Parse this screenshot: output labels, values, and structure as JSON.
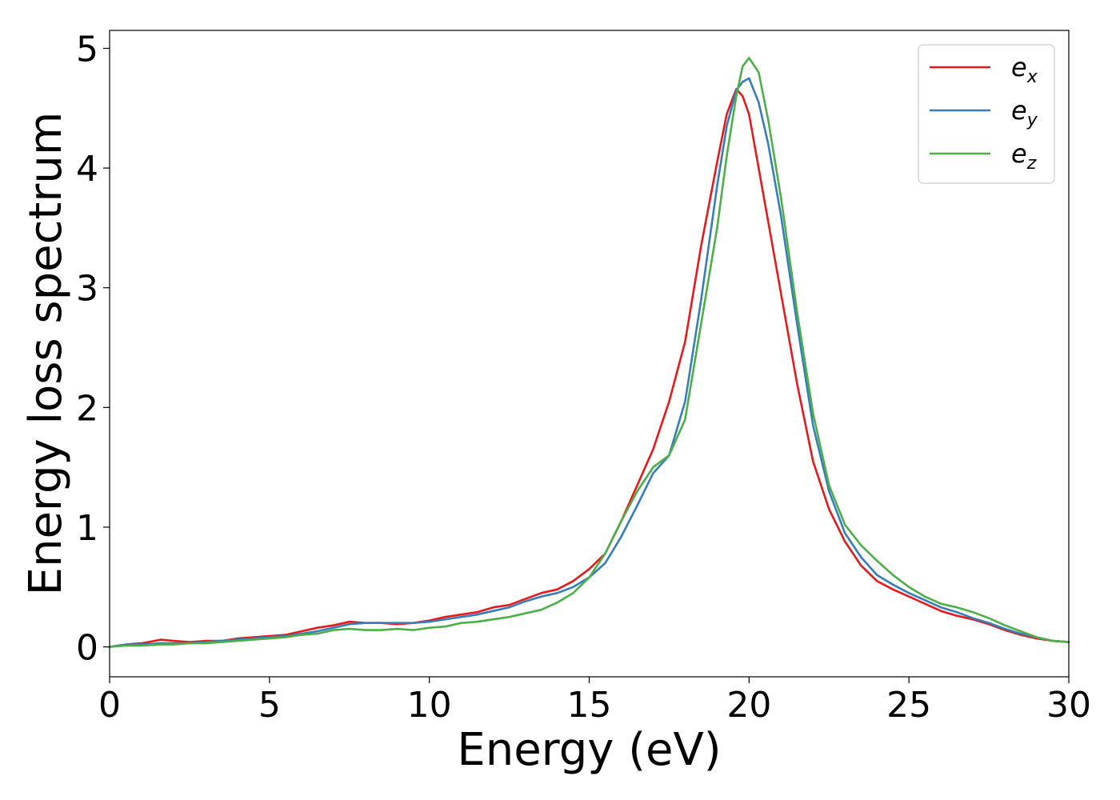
{
  "chart_data": {
    "type": "line",
    "title": "",
    "xlabel": "Energy (eV)",
    "ylabel": "Energy loss spectrum",
    "xlim": [
      0,
      30
    ],
    "ylim": [
      -0.25,
      5.15
    ],
    "xticks": [
      0,
      5,
      10,
      15,
      20,
      25,
      30
    ],
    "yticks": [
      0,
      1,
      2,
      3,
      4,
      5
    ],
    "grid": false,
    "legend_position": "top-right",
    "series": [
      {
        "name": "e",
        "subscript": "x",
        "color": "#e41a1c",
        "x": [
          0,
          0.5,
          1,
          1.6,
          2,
          2.5,
          3,
          3.5,
          4,
          4.5,
          5,
          5.5,
          6,
          6.5,
          7,
          7.5,
          8,
          8.5,
          9,
          9.5,
          10,
          10.5,
          11,
          11.5,
          12,
          12.5,
          13,
          13.5,
          14,
          14.5,
          15,
          15.5,
          16,
          16.5,
          17,
          17.5,
          18,
          18.5,
          19,
          19.3,
          19.6,
          19.8,
          20,
          20.3,
          20.6,
          21,
          21.5,
          22,
          22.5,
          23,
          23.5,
          24,
          24.5,
          25,
          25.5,
          26,
          26.5,
          27,
          27.5,
          28,
          28.5,
          29,
          29.5,
          30
        ],
        "values": [
          0.0,
          0.02,
          0.03,
          0.06,
          0.05,
          0.04,
          0.05,
          0.05,
          0.07,
          0.08,
          0.09,
          0.1,
          0.13,
          0.16,
          0.18,
          0.21,
          0.2,
          0.2,
          0.19,
          0.2,
          0.22,
          0.25,
          0.27,
          0.29,
          0.33,
          0.35,
          0.4,
          0.45,
          0.48,
          0.55,
          0.65,
          0.78,
          1.05,
          1.35,
          1.65,
          2.05,
          2.55,
          3.35,
          4.05,
          4.45,
          4.66,
          4.6,
          4.45,
          4.0,
          3.55,
          2.95,
          2.2,
          1.55,
          1.15,
          0.88,
          0.68,
          0.55,
          0.48,
          0.42,
          0.36,
          0.3,
          0.26,
          0.23,
          0.19,
          0.14,
          0.1,
          0.07,
          0.05,
          0.04
        ]
      },
      {
        "name": "e",
        "subscript": "y",
        "color": "#377eb8",
        "x": [
          0,
          0.5,
          1,
          1.6,
          2,
          2.5,
          3,
          3.5,
          4,
          4.5,
          5,
          5.5,
          6,
          6.5,
          7,
          7.5,
          8,
          8.5,
          9,
          9.5,
          10,
          10.5,
          11,
          11.5,
          12,
          12.5,
          13,
          13.5,
          14,
          14.5,
          15,
          15.5,
          16,
          16.5,
          17,
          17.5,
          18,
          18.5,
          19,
          19.3,
          19.6,
          19.8,
          20,
          20.3,
          20.6,
          21,
          21.5,
          22,
          22.5,
          23,
          23.5,
          24,
          24.5,
          25,
          25.5,
          26,
          26.5,
          27,
          27.5,
          28,
          28.5,
          29,
          29.5,
          30
        ],
        "values": [
          0.0,
          0.02,
          0.02,
          0.03,
          0.03,
          0.03,
          0.04,
          0.05,
          0.06,
          0.07,
          0.08,
          0.09,
          0.11,
          0.13,
          0.16,
          0.19,
          0.2,
          0.2,
          0.2,
          0.2,
          0.21,
          0.23,
          0.25,
          0.27,
          0.3,
          0.33,
          0.38,
          0.42,
          0.45,
          0.5,
          0.58,
          0.7,
          0.92,
          1.18,
          1.45,
          1.6,
          2.05,
          2.9,
          3.85,
          4.35,
          4.65,
          4.72,
          4.75,
          4.55,
          4.2,
          3.6,
          2.7,
          1.85,
          1.3,
          0.95,
          0.75,
          0.6,
          0.52,
          0.45,
          0.39,
          0.33,
          0.29,
          0.24,
          0.2,
          0.15,
          0.11,
          0.08,
          0.05,
          0.04
        ]
      },
      {
        "name": "e",
        "subscript": "z",
        "color": "#4daf4a",
        "x": [
          0,
          0.5,
          1,
          1.6,
          2,
          2.5,
          3,
          3.5,
          4,
          4.5,
          5,
          5.5,
          6,
          6.5,
          7,
          7.5,
          8,
          8.5,
          9,
          9.5,
          10,
          10.5,
          11,
          11.5,
          12,
          12.5,
          13,
          13.5,
          14,
          14.5,
          15,
          15.5,
          16,
          16.5,
          17,
          17.5,
          18,
          18.5,
          19,
          19.3,
          19.6,
          19.8,
          20,
          20.3,
          20.6,
          21,
          21.5,
          22,
          22.5,
          23,
          23.5,
          24,
          24.5,
          25,
          25.5,
          26,
          26.5,
          27,
          27.5,
          28,
          28.5,
          29,
          29.5,
          30
        ],
        "values": [
          0.0,
          0.01,
          0.01,
          0.02,
          0.02,
          0.03,
          0.03,
          0.04,
          0.05,
          0.06,
          0.07,
          0.08,
          0.1,
          0.11,
          0.14,
          0.15,
          0.14,
          0.14,
          0.15,
          0.14,
          0.16,
          0.17,
          0.2,
          0.21,
          0.23,
          0.25,
          0.28,
          0.31,
          0.37,
          0.45,
          0.58,
          0.78,
          1.05,
          1.3,
          1.5,
          1.6,
          1.9,
          2.7,
          3.5,
          4.1,
          4.6,
          4.85,
          4.92,
          4.8,
          4.4,
          3.75,
          2.8,
          1.95,
          1.35,
          1.02,
          0.85,
          0.72,
          0.6,
          0.5,
          0.42,
          0.36,
          0.33,
          0.29,
          0.24,
          0.18,
          0.13,
          0.08,
          0.05,
          0.04
        ]
      }
    ]
  }
}
